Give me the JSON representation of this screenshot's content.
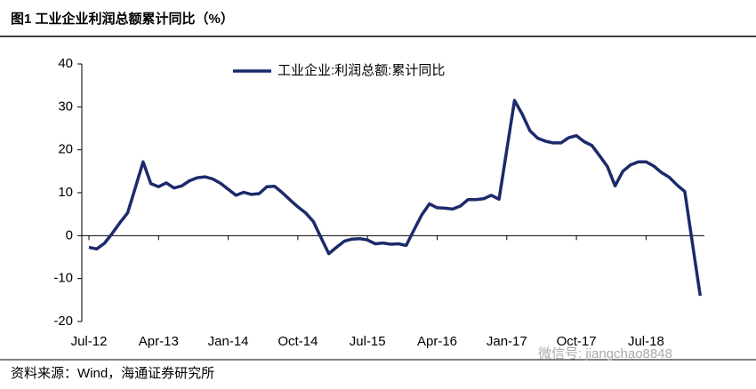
{
  "chart_data": {
    "type": "line",
    "title": "图1   工业企业利润总额累计同比（%）",
    "source": "资料来源：Wind，海通证券研究所",
    "watermark": "微信号: jiangchao8848",
    "categories": [
      "Jul-12",
      null,
      null,
      null,
      null,
      null,
      null,
      null,
      null,
      "Apr-13",
      null,
      null,
      null,
      null,
      null,
      null,
      null,
      null,
      "Jan-14",
      null,
      null,
      null,
      null,
      null,
      null,
      null,
      null,
      "Oct-14",
      null,
      null,
      null,
      null,
      null,
      null,
      null,
      null,
      "Jul-15",
      null,
      null,
      null,
      null,
      null,
      null,
      null,
      null,
      "Apr-16",
      null,
      null,
      null,
      null,
      null,
      null,
      null,
      null,
      "Jan-17",
      null,
      null,
      null,
      null,
      null,
      null,
      null,
      null,
      "Oct-17",
      null,
      null,
      null,
      null,
      null,
      null,
      null,
      null,
      "Jul-18",
      null,
      null,
      null,
      null,
      null,
      null,
      null
    ],
    "series": [
      {
        "name": "工业企业:利润总额:累计同比",
        "color": "#1c2a6b",
        "values": [
          -2.7,
          -3.1,
          -1.8,
          0.5,
          3.0,
          5.3,
          11.2,
          17.2,
          12.1,
          11.4,
          12.3,
          11.1,
          11.6,
          12.8,
          13.5,
          13.7,
          13.2,
          12.2,
          10.8,
          9.4,
          10.1,
          9.6,
          9.8,
          11.4,
          11.5,
          10.0,
          8.3,
          6.7,
          5.3,
          3.3,
          -0.5,
          -4.2,
          -2.7,
          -1.3,
          -0.8,
          -0.7,
          -1.0,
          -1.9,
          -1.7,
          -2.0,
          -1.9,
          -2.3,
          1.3,
          4.8,
          7.4,
          6.5,
          6.4,
          6.2,
          6.9,
          8.4,
          8.4,
          8.6,
          9.4,
          8.5,
          20.0,
          31.5,
          28.3,
          24.4,
          22.7,
          22.0,
          21.6,
          21.6,
          22.8,
          23.3,
          21.9,
          21.0,
          18.6,
          16.1,
          11.6,
          15.0,
          16.5,
          17.2,
          17.2,
          16.2,
          14.7,
          13.6,
          11.8,
          10.3,
          -1.9,
          -14.0
        ]
      }
    ],
    "ylim": [
      -20,
      40
    ],
    "yticks": [
      -20,
      -10,
      0,
      10,
      20,
      30,
      40
    ],
    "grid": false,
    "legend": "top"
  }
}
